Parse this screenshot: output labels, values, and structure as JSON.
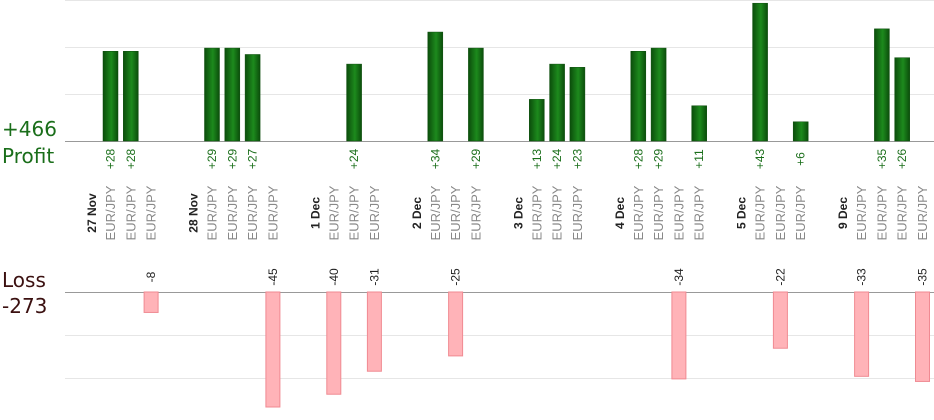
{
  "summary": {
    "profit_total": "+466",
    "profit_label": "Profit",
    "loss_label": "Loss",
    "loss_total": "-273"
  },
  "colors": {
    "profit_bar_dark": "#0b4d0b",
    "profit_bar_light": "#1d8a1d",
    "profit_text": "#1a6e1a",
    "loss_bar": "#ffb3b8",
    "loss_bar_edge": "#f08a92",
    "loss_text": "#222222",
    "date_text": "#222222",
    "pair_text": "#888888"
  },
  "chart_data": {
    "type": "bar",
    "profit_ylim": [
      0,
      44
    ],
    "loss_ylim": [
      0,
      45
    ],
    "grid": true,
    "groups": [
      {
        "date": "27 Nov",
        "trades": [
          {
            "pair": "EUR/JPY",
            "value": 28
          },
          {
            "pair": "EUR/JPY",
            "value": 28
          },
          {
            "pair": "EUR/JPY",
            "value": -8
          }
        ]
      },
      {
        "date": "28 Nov",
        "trades": [
          {
            "pair": "EUR/JPY",
            "value": 29
          },
          {
            "pair": "EUR/JPY",
            "value": 29
          },
          {
            "pair": "EUR/JPY",
            "value": 27
          },
          {
            "pair": "EUR/JPY",
            "value": -45
          }
        ]
      },
      {
        "date": "1 Dec",
        "trades": [
          {
            "pair": "EUR/JPY",
            "value": -40
          },
          {
            "pair": "EUR/JPY",
            "value": 24
          },
          {
            "pair": "EUR/JPY",
            "value": -31
          }
        ]
      },
      {
        "date": "2 Dec",
        "trades": [
          {
            "pair": "EUR/JPY",
            "value": 34
          },
          {
            "pair": "EUR/JPY",
            "value": -25
          },
          {
            "pair": "EUR/JPY",
            "value": 29
          }
        ]
      },
      {
        "date": "3 Dec",
        "trades": [
          {
            "pair": "EUR/JPY",
            "value": 13
          },
          {
            "pair": "EUR/JPY",
            "value": 24
          },
          {
            "pair": "EUR/JPY",
            "value": 23
          }
        ]
      },
      {
        "date": "4 Dec",
        "trades": [
          {
            "pair": "EUR/JPY",
            "value": 28
          },
          {
            "pair": "EUR/JPY",
            "value": 29
          },
          {
            "pair": "EUR/JPY",
            "value": -34
          },
          {
            "pair": "EUR/JPY",
            "value": 11
          }
        ]
      },
      {
        "date": "5 Dec",
        "trades": [
          {
            "pair": "EUR/JPY",
            "value": 43
          },
          {
            "pair": "EUR/JPY",
            "value": -22
          },
          {
            "pair": "EUR/JPY",
            "value": 6
          }
        ]
      },
      {
        "date": "9 Dec",
        "trades": [
          {
            "pair": "EUR/JPY",
            "value": -33
          },
          {
            "pair": "EUR/JPY",
            "value": 35
          },
          {
            "pair": "EUR/JPY",
            "value": 26
          },
          {
            "pair": "EUR/JPY",
            "value": -35
          }
        ]
      }
    ]
  }
}
